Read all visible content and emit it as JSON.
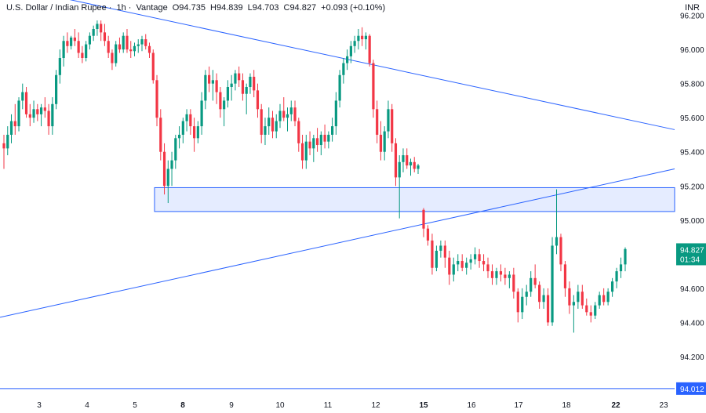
{
  "header": {
    "symbol": "U.S. Dollar / Indian Rupee",
    "interval": "1h",
    "source": "Vantage",
    "open": "O94.735",
    "high": "H94.839",
    "low": "L94.703",
    "close": "C94.827",
    "change": "+0.093 (+0.10%)"
  },
  "currency": "INR",
  "chart_data": {
    "type": "candlestick",
    "ylim": [
      93.97,
      96.29
    ],
    "y_ticks": [
      "96.200",
      "96.000",
      "95.800",
      "95.600",
      "95.400",
      "95.200",
      "95.000",
      "94.800",
      "94.600",
      "94.400",
      "94.200"
    ],
    "x_ticks": [
      {
        "label": "3",
        "bold": false
      },
      {
        "label": "4",
        "bold": false
      },
      {
        "label": "5",
        "bold": false
      },
      {
        "label": "8",
        "bold": true
      },
      {
        "label": "9",
        "bold": false
      },
      {
        "label": "10",
        "bold": false
      },
      {
        "label": "11",
        "bold": false
      },
      {
        "label": "12",
        "bold": false
      },
      {
        "label": "15",
        "bold": true
      },
      {
        "label": "16",
        "bold": false
      },
      {
        "label": "17",
        "bold": false
      },
      {
        "label": "18",
        "bold": false
      },
      {
        "label": "22",
        "bold": true
      },
      {
        "label": "23",
        "bold": false
      }
    ],
    "last_price": {
      "value": "94.827",
      "countdown": "01:34",
      "color": "#089981"
    },
    "horizontal_line": {
      "value": "94.012",
      "color": "#2962ff"
    },
    "zone": {
      "top": 95.19,
      "bottom": 95.05
    },
    "up_color": "#089981",
    "down_color": "#f23645",
    "line_color": "#2962ff",
    "ohlc": [
      [
        95.45,
        95.5,
        95.3,
        95.42
      ],
      [
        95.42,
        95.55,
        95.38,
        95.5
      ],
      [
        95.5,
        95.62,
        95.45,
        95.58
      ],
      [
        95.58,
        95.68,
        95.5,
        95.55
      ],
      [
        95.55,
        95.72,
        95.52,
        95.7
      ],
      [
        95.7,
        95.8,
        95.65,
        95.75
      ],
      [
        95.75,
        95.78,
        95.6,
        95.62
      ],
      [
        95.62,
        95.68,
        95.55,
        95.6
      ],
      [
        95.6,
        95.7,
        95.57,
        95.65
      ],
      [
        95.65,
        95.68,
        95.58,
        95.62
      ],
      [
        95.62,
        95.68,
        95.55,
        95.66
      ],
      [
        95.66,
        95.72,
        95.6,
        95.64
      ],
      [
        95.64,
        95.68,
        95.5,
        95.55
      ],
      [
        95.55,
        95.72,
        95.5,
        95.68
      ],
      [
        95.68,
        95.88,
        95.65,
        95.85
      ],
      [
        95.85,
        96.0,
        95.8,
        95.95
      ],
      [
        95.95,
        96.08,
        95.9,
        96.05
      ],
      [
        96.05,
        96.1,
        95.98,
        96.02
      ],
      [
        96.02,
        96.08,
        96.0,
        96.07
      ],
      [
        96.07,
        96.12,
        96.02,
        96.05
      ],
      [
        96.05,
        96.1,
        95.95,
        95.98
      ],
      [
        95.98,
        96.02,
        95.92,
        95.95
      ],
      [
        95.95,
        96.05,
        95.93,
        96.03
      ],
      [
        96.03,
        96.1,
        96.0,
        96.08
      ],
      [
        96.08,
        96.14,
        96.05,
        96.12
      ],
      [
        96.12,
        96.17,
        96.08,
        96.15
      ],
      [
        96.15,
        96.17,
        96.05,
        96.1
      ],
      [
        96.1,
        96.15,
        96.02,
        96.05
      ],
      [
        96.05,
        96.08,
        95.95,
        95.98
      ],
      [
        95.98,
        96.0,
        95.88,
        95.92
      ],
      [
        95.92,
        96.05,
        95.9,
        96.03
      ],
      [
        96.03,
        96.07,
        95.98,
        96.0
      ],
      [
        96.0,
        96.1,
        95.98,
        96.08
      ],
      [
        96.08,
        96.12,
        95.98,
        96.0
      ],
      [
        96.0,
        96.05,
        95.95,
        95.99
      ],
      [
        95.99,
        96.04,
        95.96,
        96.02
      ],
      [
        96.02,
        96.06,
        95.98,
        96.03
      ],
      [
        96.03,
        96.08,
        95.99,
        96.06
      ],
      [
        96.06,
        96.09,
        96.0,
        96.02
      ],
      [
        96.02,
        96.04,
        95.95,
        95.98
      ],
      [
        95.98,
        96.0,
        95.8,
        95.82
      ],
      [
        95.82,
        95.85,
        95.55,
        95.6
      ],
      [
        95.6,
        95.65,
        95.35,
        95.4
      ],
      [
        95.4,
        95.45,
        95.15,
        95.2
      ],
      [
        95.2,
        95.35,
        95.1,
        95.3
      ],
      [
        95.3,
        95.4,
        95.2,
        95.35
      ],
      [
        95.35,
        95.5,
        95.3,
        95.48
      ],
      [
        95.48,
        95.55,
        95.42,
        95.5
      ],
      [
        95.5,
        95.6,
        95.45,
        95.58
      ],
      [
        95.58,
        95.65,
        95.52,
        95.62
      ],
      [
        95.62,
        95.65,
        95.5,
        95.55
      ],
      [
        95.55,
        95.6,
        95.4,
        95.48
      ],
      [
        95.48,
        95.58,
        95.45,
        95.55
      ],
      [
        95.55,
        95.75,
        95.5,
        95.7
      ],
      [
        95.7,
        95.88,
        95.65,
        95.85
      ],
      [
        95.85,
        95.9,
        95.75,
        95.8
      ],
      [
        95.8,
        95.88,
        95.7,
        95.82
      ],
      [
        95.82,
        95.86,
        95.68,
        95.75
      ],
      [
        95.75,
        95.78,
        95.6,
        95.65
      ],
      [
        95.65,
        95.72,
        95.55,
        95.7
      ],
      [
        95.7,
        95.82,
        95.66,
        95.78
      ],
      [
        95.78,
        95.85,
        95.7,
        95.8
      ],
      [
        95.8,
        95.88,
        95.76,
        95.86
      ],
      [
        95.86,
        95.9,
        95.78,
        95.82
      ],
      [
        95.82,
        95.86,
        95.7,
        95.74
      ],
      [
        95.74,
        95.8,
        95.62,
        95.78
      ],
      [
        95.78,
        95.86,
        95.74,
        95.84
      ],
      [
        95.84,
        95.88,
        95.72,
        95.76
      ],
      [
        95.76,
        95.8,
        95.6,
        95.65
      ],
      [
        95.65,
        95.68,
        95.45,
        95.5
      ],
      [
        95.5,
        95.6,
        95.44,
        95.55
      ],
      [
        95.55,
        95.66,
        95.5,
        95.6
      ],
      [
        95.6,
        95.64,
        95.48,
        95.52
      ],
      [
        95.52,
        95.62,
        95.48,
        95.58
      ],
      [
        95.58,
        95.68,
        95.54,
        95.64
      ],
      [
        95.64,
        95.72,
        95.58,
        95.6
      ],
      [
        95.6,
        95.66,
        95.52,
        95.62
      ],
      [
        95.62,
        95.7,
        95.58,
        95.66
      ],
      [
        95.66,
        95.7,
        95.55,
        95.58
      ],
      [
        95.58,
        95.6,
        95.4,
        95.45
      ],
      [
        95.45,
        95.5,
        95.3,
        95.35
      ],
      [
        95.35,
        95.5,
        95.3,
        95.46
      ],
      [
        95.46,
        95.52,
        95.38,
        95.42
      ],
      [
        95.42,
        95.5,
        95.34,
        95.48
      ],
      [
        95.48,
        95.54,
        95.4,
        95.44
      ],
      [
        95.44,
        95.52,
        95.38,
        95.5
      ],
      [
        95.5,
        95.56,
        95.42,
        95.46
      ],
      [
        95.46,
        95.52,
        95.42,
        95.5
      ],
      [
        95.5,
        95.6,
        95.46,
        95.55
      ],
      [
        95.55,
        95.75,
        95.5,
        95.7
      ],
      [
        95.7,
        95.88,
        95.66,
        95.85
      ],
      [
        95.85,
        95.95,
        95.8,
        95.92
      ],
      [
        95.92,
        96.0,
        95.88,
        95.96
      ],
      [
        95.96,
        96.05,
        95.92,
        96.02
      ],
      [
        96.02,
        96.08,
        95.98,
        96.05
      ],
      [
        96.05,
        96.12,
        96.0,
        96.08
      ],
      [
        96.08,
        96.13,
        96.02,
        96.06
      ],
      [
        96.06,
        96.1,
        96.0,
        96.08
      ],
      [
        96.08,
        96.09,
        95.9,
        95.92
      ],
      [
        95.92,
        95.94,
        95.6,
        95.65
      ],
      [
        95.65,
        95.7,
        95.45,
        95.5
      ],
      [
        95.5,
        95.58,
        95.35,
        95.4
      ],
      [
        95.4,
        95.55,
        95.35,
        95.52
      ],
      [
        95.52,
        95.7,
        95.48,
        95.65
      ],
      [
        95.65,
        95.68,
        95.4,
        95.45
      ],
      [
        95.45,
        95.48,
        95.2,
        95.25
      ],
      [
        95.25,
        95.38,
        95.01,
        95.34
      ],
      [
        95.34,
        95.42,
        95.28,
        95.38
      ],
      [
        95.38,
        95.42,
        95.3,
        95.32
      ],
      [
        95.32,
        95.36,
        95.26,
        95.34
      ],
      [
        95.34,
        95.37,
        95.28,
        95.3
      ],
      [
        95.3,
        95.33,
        95.27,
        95.32
      ],
      [
        95.06,
        95.07,
        94.9,
        94.95
      ],
      [
        94.95,
        94.97,
        94.85,
        94.88
      ],
      [
        94.88,
        94.92,
        94.68,
        94.72
      ],
      [
        94.72,
        94.85,
        94.7,
        94.82
      ],
      [
        94.82,
        94.88,
        94.78,
        94.85
      ],
      [
        94.85,
        94.88,
        94.72,
        94.78
      ],
      [
        94.78,
        94.82,
        94.62,
        94.68
      ],
      [
        94.68,
        94.78,
        94.64,
        94.74
      ],
      [
        94.74,
        94.8,
        94.7,
        94.76
      ],
      [
        94.76,
        94.8,
        94.7,
        94.72
      ],
      [
        94.72,
        94.78,
        94.68,
        94.75
      ],
      [
        94.75,
        94.8,
        94.71,
        94.77
      ],
      [
        94.77,
        94.84,
        94.74,
        94.8
      ],
      [
        94.8,
        94.83,
        94.72,
        94.76
      ],
      [
        94.76,
        94.8,
        94.7,
        94.74
      ],
      [
        94.74,
        94.78,
        94.66,
        94.7
      ],
      [
        94.7,
        94.74,
        94.62,
        94.66
      ],
      [
        94.66,
        94.72,
        94.62,
        94.7
      ],
      [
        94.7,
        94.74,
        94.64,
        94.68
      ],
      [
        94.68,
        94.72,
        94.62,
        94.66
      ],
      [
        94.66,
        94.7,
        94.6,
        94.68
      ],
      [
        94.68,
        94.72,
        94.54,
        94.58
      ],
      [
        94.58,
        94.6,
        94.4,
        94.46
      ],
      [
        94.46,
        94.6,
        94.42,
        94.55
      ],
      [
        94.55,
        94.62,
        94.5,
        94.58
      ],
      [
        94.58,
        94.7,
        94.55,
        94.66
      ],
      [
        94.66,
        94.74,
        94.6,
        94.62
      ],
      [
        94.62,
        94.64,
        94.48,
        94.52
      ],
      [
        94.52,
        94.6,
        94.48,
        94.56
      ],
      [
        94.56,
        94.6,
        94.38,
        94.4
      ],
      [
        94.4,
        94.9,
        94.38,
        94.85
      ],
      [
        94.85,
        95.18,
        94.8,
        94.9
      ],
      [
        94.9,
        94.92,
        94.7,
        94.74
      ],
      [
        94.74,
        94.76,
        94.55,
        94.6
      ],
      [
        94.6,
        94.64,
        94.45,
        94.5
      ],
      [
        94.5,
        94.56,
        94.34,
        94.52
      ],
      [
        94.52,
        94.62,
        94.48,
        94.58
      ],
      [
        94.58,
        94.62,
        94.48,
        94.5
      ],
      [
        94.5,
        94.54,
        94.44,
        94.46
      ],
      [
        94.46,
        94.5,
        94.4,
        94.44
      ],
      [
        94.44,
        94.52,
        94.42,
        94.5
      ],
      [
        94.5,
        94.58,
        94.48,
        94.56
      ],
      [
        94.56,
        94.6,
        94.5,
        94.52
      ],
      [
        94.52,
        94.6,
        94.5,
        94.58
      ],
      [
        94.58,
        94.66,
        94.55,
        94.64
      ],
      [
        94.64,
        94.72,
        94.6,
        94.7
      ],
      [
        94.7,
        94.78,
        94.66,
        94.74
      ],
      [
        94.74,
        94.84,
        94.7,
        94.83
      ]
    ],
    "trendlines": [
      {
        "from": [
          0.0,
          96.38
        ],
        "to": [
          1.0,
          95.53
        ]
      },
      {
        "from": [
          0.0,
          94.43
        ],
        "to": [
          1.0,
          95.3
        ]
      }
    ]
  }
}
